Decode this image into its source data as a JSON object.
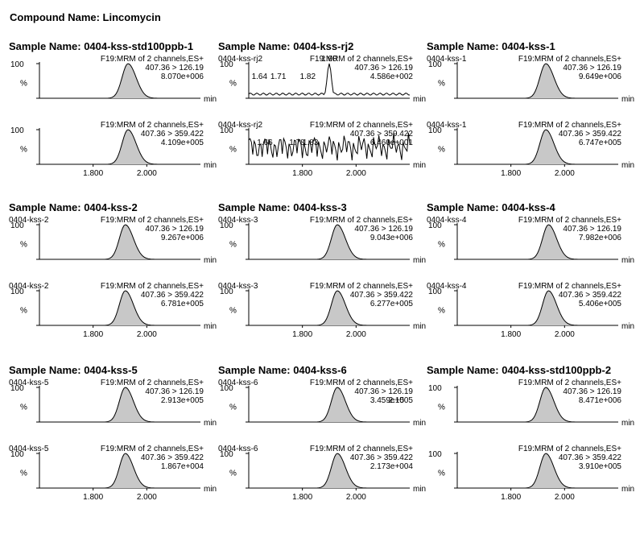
{
  "compound_title": "Compound Name: Lincomycin",
  "chart_data": [
    {
      "type": "line",
      "title": "Sample Name: 0404-kss-std100ppb-1",
      "panels": [
        {
          "sample_label": "",
          "channel": "F19:MRM of 2 channels,ES+",
          "transition": "407.36 > 126.19",
          "intensity": "8.070e+006",
          "ylabel": "%",
          "ytick": "100",
          "xlabel": "min",
          "peak_rt": 1.93,
          "peaks": [],
          "noise": false
        },
        {
          "sample_label": "",
          "channel": "F19:MRM of 2 channels,ES+",
          "transition": "407.36 > 359.422",
          "intensity": "4.109e+005",
          "ylabel": "%",
          "ytick": "100",
          "xlabel": "min",
          "peak_rt": 1.93,
          "peaks": [],
          "noise": false
        }
      ],
      "x_ticks": [
        "1.800",
        "2.000"
      ],
      "xlim": [
        1.6,
        2.2
      ]
    },
    {
      "type": "line",
      "title": "Sample Name: 0404-kss-rj2",
      "panels": [
        {
          "sample_label": "0404-kss-rj2",
          "channel": "F19:MRM of 2 channels,ES+",
          "transition": "407.36 > 126.19",
          "intensity": "4.586e+002",
          "ylabel": "%",
          "ytick": "100",
          "xlabel": "min",
          "peak_rt": 1.9,
          "peaks": [
            {
              "rt": 1.64,
              "label": "1.64"
            },
            {
              "rt": 1.71,
              "label": "1.71"
            },
            {
              "rt": 1.82,
              "label": "1.82"
            },
            {
              "rt": 1.9,
              "label": "1.90"
            }
          ],
          "noise": false
        },
        {
          "sample_label": "0404-kss-rj2",
          "channel": "F19:MRM of 2 channels,ES+",
          "transition": "407.36 > 359.422",
          "intensity": "6.460e+001",
          "ylabel": "%",
          "ytick": "100",
          "xlabel": "min",
          "peak_rt": null,
          "peaks": [
            {
              "rt": 1.66,
              "label": "1.66"
            },
            {
              "rt": 1.78,
              "label": "1.78"
            },
            {
              "rt": 1.83,
              "label": "1.83"
            }
          ],
          "noise": true
        }
      ],
      "x_ticks": [
        "1.800",
        "2.000"
      ],
      "xlim": [
        1.6,
        2.2
      ]
    },
    {
      "type": "line",
      "title": "Sample Name: 0404-kss-1",
      "panels": [
        {
          "sample_label": "0404-kss-1",
          "channel": "F19:MRM of 2 channels,ES+",
          "transition": "407.36 > 126.19",
          "intensity": "9.649e+006",
          "ylabel": "%",
          "ytick": "100",
          "xlabel": "min",
          "peak_rt": 1.93,
          "peaks": [],
          "noise": false
        },
        {
          "sample_label": "0404-kss-1",
          "channel": "F19:MRM of 2 channels,ES+",
          "transition": "407.36 > 359.422",
          "intensity": "6.747e+005",
          "ylabel": "%",
          "ytick": "100",
          "xlabel": "min",
          "peak_rt": 1.93,
          "peaks": [],
          "noise": false
        }
      ],
      "x_ticks": [
        "1.800",
        "2.000"
      ],
      "xlim": [
        1.6,
        2.2
      ]
    },
    {
      "type": "line",
      "title": "Sample Name: 0404-kss-2",
      "panels": [
        {
          "sample_label": "0404-kss-2",
          "channel": "F19:MRM of 2 channels,ES+",
          "transition": "407.36 > 126.19",
          "intensity": "9.267e+006",
          "ylabel": "%",
          "ytick": "100",
          "xlabel": "min",
          "peak_rt": 1.92,
          "peaks": [],
          "noise": false
        },
        {
          "sample_label": "0404-kss-2",
          "channel": "F19:MRM of 2 channels,ES+",
          "transition": "407.36 > 359.422",
          "intensity": "6.781e+005",
          "ylabel": "%",
          "ytick": "100",
          "xlabel": "min",
          "peak_rt": 1.92,
          "peaks": [],
          "noise": false
        }
      ],
      "x_ticks": [
        "1.800",
        "2.000"
      ],
      "xlim": [
        1.6,
        2.2
      ]
    },
    {
      "type": "line",
      "title": "Sample Name: 0404-kss-3",
      "panels": [
        {
          "sample_label": "0404-kss-3",
          "channel": "F19:MRM of 2 channels,ES+",
          "transition": "407.36 > 126.19",
          "intensity": "9.043e+006",
          "ylabel": "%",
          "ytick": "100",
          "xlabel": "min",
          "peak_rt": 1.93,
          "peaks": [],
          "noise": false
        },
        {
          "sample_label": "0404-kss-3",
          "channel": "F19:MRM of 2 channels,ES+",
          "transition": "407.36 > 359.422",
          "intensity": "6.277e+005",
          "ylabel": "%",
          "ytick": "100",
          "xlabel": "min",
          "peak_rt": 1.93,
          "peaks": [],
          "noise": false
        }
      ],
      "x_ticks": [
        "1.800",
        "2.000"
      ],
      "xlim": [
        1.6,
        2.2
      ]
    },
    {
      "type": "line",
      "title": "Sample Name: 0404-kss-4",
      "panels": [
        {
          "sample_label": "0404-kss-4",
          "channel": "F19:MRM of 2 channels,ES+",
          "transition": "407.36 > 126.19",
          "intensity": "7.982e+006",
          "ylabel": "%",
          "ytick": "100",
          "xlabel": "min",
          "peak_rt": 1.94,
          "peaks": [],
          "noise": false
        },
        {
          "sample_label": "0404-kss-4",
          "channel": "F19:MRM of 2 channels,ES+",
          "transition": "407.36 > 359.422",
          "intensity": "5.406e+005",
          "ylabel": "%",
          "ytick": "100",
          "xlabel": "min",
          "peak_rt": 1.94,
          "peaks": [],
          "noise": false
        }
      ],
      "x_ticks": [
        "1.800",
        "2.000"
      ],
      "xlim": [
        1.6,
        2.2
      ]
    },
    {
      "type": "line",
      "title": "Sample Name: 0404-kss-5",
      "panels": [
        {
          "sample_label": "0404-kss-5",
          "channel": "F19:MRM of 2 channels,ES+",
          "transition": "407.36 > 126.19",
          "intensity": "2.913e+005",
          "ylabel": "%",
          "ytick": "100",
          "xlabel": "min",
          "peak_rt": 1.92,
          "peaks": [],
          "noise": false
        },
        {
          "sample_label": "0404-kss-5",
          "channel": "F19:MRM of 2 channels,ES+",
          "transition": "407.36 > 359.422",
          "intensity": "1.867e+004",
          "ylabel": "%",
          "ytick": "100",
          "xlabel": "min",
          "peak_rt": 1.92,
          "peaks": [],
          "noise": false
        }
      ],
      "x_ticks": [
        "1.800",
        "2.000"
      ],
      "xlim": [
        1.6,
        2.2
      ]
    },
    {
      "type": "line",
      "title": "Sample Name: 0404-kss-6",
      "panels": [
        {
          "sample_label": "0404-kss-6",
          "channel": "F19:MRM of 2 channels,ES+",
          "transition": "407.36 > 126.19",
          "intensity": "3.459e+005",
          "ylabel": "%",
          "ytick": "100",
          "xlabel": "min",
          "peak_rt": 1.93,
          "peaks": [
            {
              "rt": 2.15,
              "label": "2.15"
            }
          ],
          "noise": false
        },
        {
          "sample_label": "0404-kss-6",
          "channel": "F19:MRM of 2 channels,ES+",
          "transition": "407.36 > 359.422",
          "intensity": "2.173e+004",
          "ylabel": "%",
          "ytick": "100",
          "xlabel": "min",
          "peak_rt": 1.93,
          "peaks": [],
          "noise": false
        }
      ],
      "x_ticks": [
        "1.800",
        "2.000"
      ],
      "xlim": [
        1.6,
        2.2
      ]
    },
    {
      "type": "line",
      "title": "Sample Name: 0404-kss-std100ppb-2",
      "panels": [
        {
          "sample_label": "",
          "channel": "F19:MRM of 2 channels,ES+",
          "transition": "407.36 > 126.19",
          "intensity": "8.471e+006",
          "ylabel": "%",
          "ytick": "100",
          "xlabel": "min",
          "peak_rt": 1.93,
          "peaks": [],
          "noise": false
        },
        {
          "sample_label": "",
          "channel": "F19:MRM of 2 channels,ES+",
          "transition": "407.36 > 359.422",
          "intensity": "3.910e+005",
          "ylabel": "%",
          "ytick": "100",
          "xlabel": "min",
          "peak_rt": 1.93,
          "peaks": [],
          "noise": false
        }
      ],
      "x_ticks": [
        "1.800",
        "2.000"
      ],
      "xlim": [
        1.6,
        2.2
      ]
    }
  ]
}
